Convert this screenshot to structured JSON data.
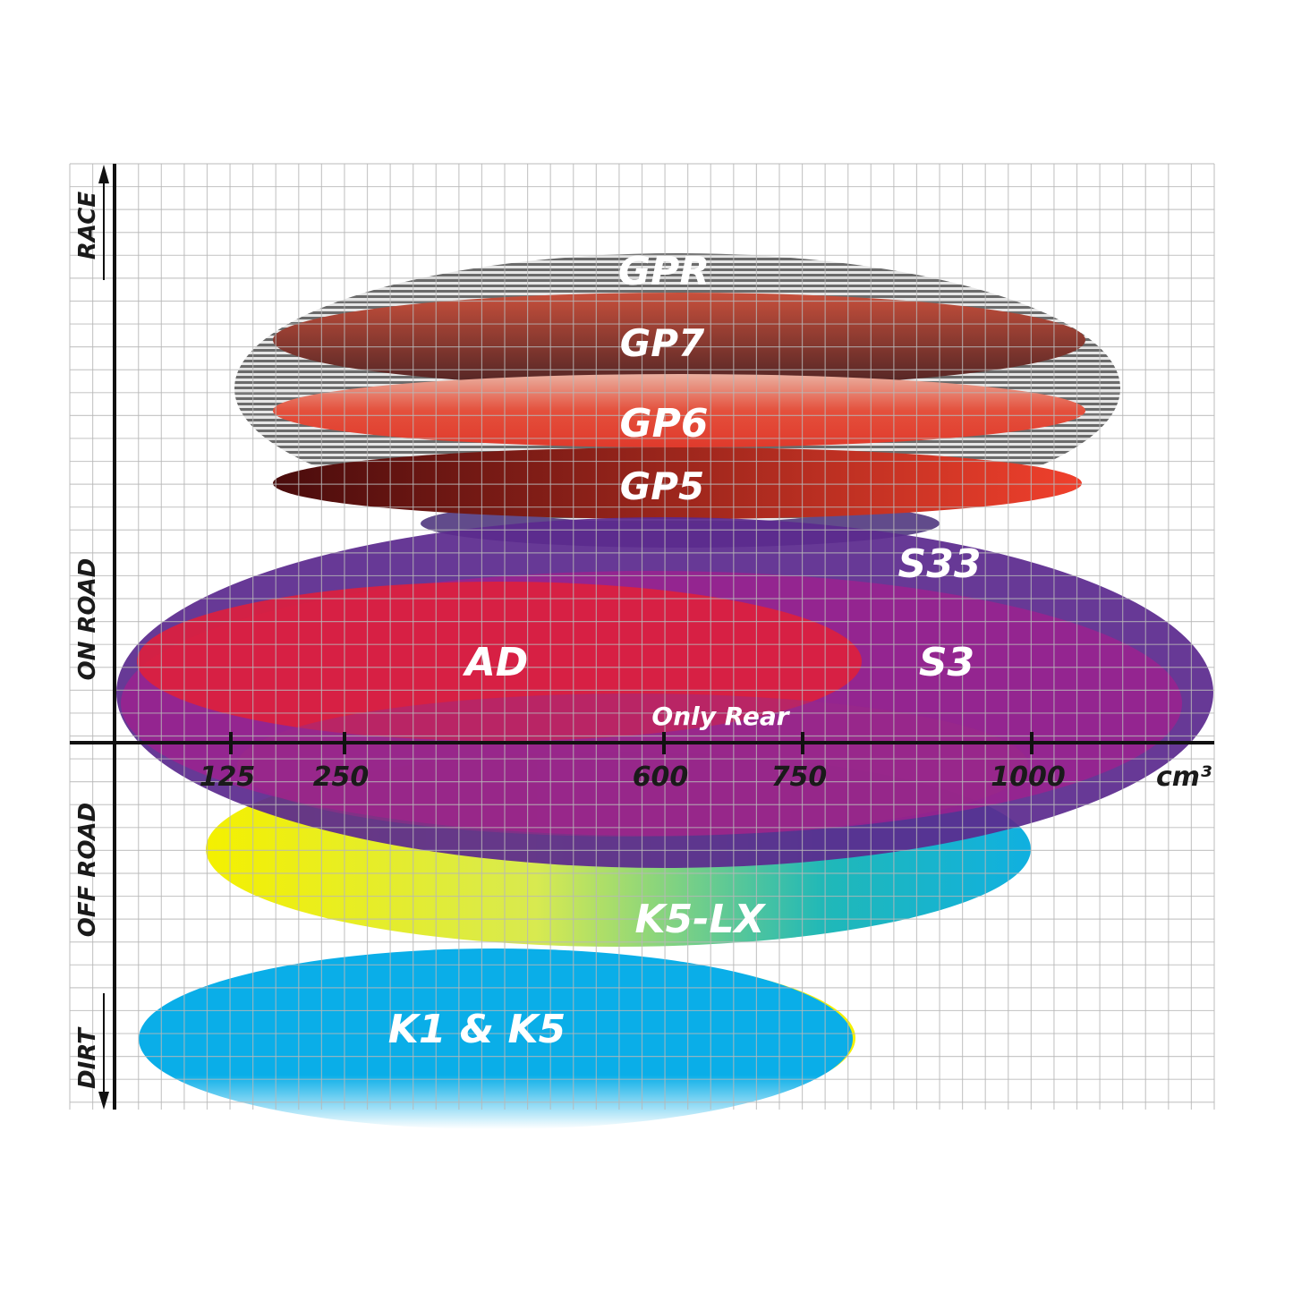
{
  "chart_data": {
    "type": "diagram-ellipses",
    "x_axis": {
      "unit": "cm³",
      "ticks": [
        "125",
        "250",
        "600",
        "750",
        "1000"
      ]
    },
    "y_axis": {
      "categories": [
        "RACE",
        "ON ROAD",
        "OFF ROAD",
        "DIRT"
      ]
    },
    "grid": true,
    "series": [
      {
        "name": "GPR",
        "color": "#9a9a9a"
      },
      {
        "name": "GP7",
        "color": "#8a3328"
      },
      {
        "name": "GP6",
        "color": "#e4483a"
      },
      {
        "name": "GP5",
        "color": "#b8201c"
      },
      {
        "name": "S33",
        "color": "#5b2a8e"
      },
      {
        "name": "S3",
        "color": "#a0208e"
      },
      {
        "name": "AD",
        "color": "#dc1f3e"
      },
      {
        "name": "Only Rear",
        "color": "#9b2a86"
      },
      {
        "name": "K5-LX",
        "color": "#20b4c8"
      },
      {
        "name": "K1 & K5",
        "color": "#0aaee8"
      }
    ]
  }
}
